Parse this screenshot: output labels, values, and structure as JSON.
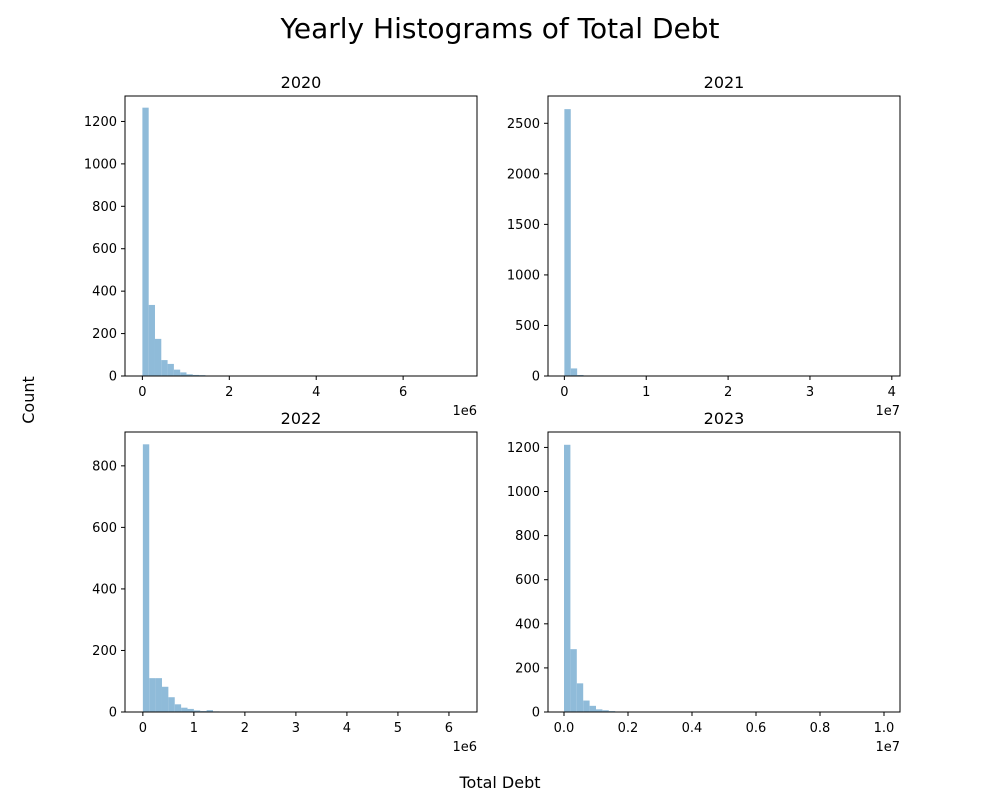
{
  "figure": {
    "title": "Yearly Histograms of Total Debt",
    "xlabel": "Total Debt",
    "ylabel": "Count"
  },
  "colors": {
    "bar": "#8fbbd9",
    "axis": "#000000",
    "background": "#ffffff"
  },
  "chart_data": [
    {
      "type": "bar",
      "title": "2020",
      "bin_width": 145000,
      "bin_start": 0,
      "values": [
        1265,
        335,
        175,
        75,
        57,
        30,
        17,
        8,
        5,
        4,
        2,
        1,
        1,
        0,
        0,
        0,
        0,
        0,
        0,
        0,
        0,
        0,
        0,
        0,
        0,
        0,
        0,
        0,
        0,
        0,
        0,
        0,
        0,
        0,
        0,
        0,
        0,
        0,
        0,
        0,
        0,
        0,
        0,
        0,
        0,
        0,
        0,
        0,
        0,
        1
      ],
      "xlim": [
        -400000,
        7700000
      ],
      "ylim": [
        0,
        1320
      ],
      "xticks": [
        0,
        2000000,
        4000000,
        6000000
      ],
      "xtick_labels": [
        "0",
        "2",
        "4",
        "6"
      ],
      "yticks": [
        0,
        200,
        400,
        600,
        800,
        1000,
        1200
      ],
      "ytick_labels": [
        "0",
        "200",
        "400",
        "600",
        "800",
        "1000",
        "1200"
      ],
      "offset_label": "1e6"
    },
    {
      "type": "bar",
      "title": "2021",
      "bin_width": 780000,
      "bin_start": 0,
      "values": [
        2640,
        75,
        10,
        3,
        1,
        0,
        0,
        0,
        0,
        0,
        0,
        0,
        0,
        0,
        0,
        0,
        0,
        0,
        0,
        0,
        0,
        0,
        0,
        0,
        0,
        0,
        0,
        0,
        0,
        0,
        0,
        0,
        0,
        0,
        0,
        0,
        0,
        0,
        0,
        0,
        0,
        0,
        0,
        0,
        0,
        0,
        0,
        0,
        0,
        1
      ],
      "xlim": [
        -2000000,
        41000000
      ],
      "ylim": [
        0,
        2770
      ],
      "xticks": [
        0,
        10000000,
        20000000,
        30000000,
        40000000
      ],
      "xtick_labels": [
        "0",
        "1",
        "2",
        "3",
        "4"
      ],
      "yticks": [
        0,
        500,
        1000,
        1500,
        2000,
        2500
      ],
      "ytick_labels": [
        "0",
        "500",
        "1000",
        "1500",
        "2000",
        "2500"
      ],
      "offset_label": "1e7"
    },
    {
      "type": "bar",
      "title": "2022",
      "bin_width": 125000,
      "bin_start": 0,
      "values": [
        870,
        110,
        110,
        82,
        48,
        25,
        14,
        10,
        5,
        3,
        6,
        2,
        1,
        1,
        0,
        0,
        0,
        0,
        0,
        0,
        0,
        0,
        0,
        0,
        0,
        0,
        0,
        0,
        0,
        0,
        0,
        0,
        0,
        0,
        0,
        0,
        0,
        0,
        0,
        0,
        0,
        0,
        0,
        0,
        0,
        0,
        0,
        0,
        0,
        1
      ],
      "xlim": [
        -350000,
        6550000
      ],
      "ylim": [
        0,
        910
      ],
      "xticks": [
        0,
        1000000,
        2000000,
        3000000,
        4000000,
        5000000,
        6000000
      ],
      "xtick_labels": [
        "0",
        "1",
        "2",
        "3",
        "4",
        "5",
        "6"
      ],
      "yticks": [
        0,
        200,
        400,
        600,
        800
      ],
      "ytick_labels": [
        "0",
        "200",
        "400",
        "600",
        "800"
      ],
      "offset_label": "1e6"
    },
    {
      "type": "bar",
      "title": "2023",
      "bin_width": 200000,
      "bin_start": 0,
      "values": [
        1212,
        285,
        130,
        52,
        28,
        12,
        8,
        4,
        2,
        1,
        1,
        0,
        0,
        0,
        0,
        0,
        0,
        0,
        0,
        0,
        0,
        0,
        0,
        0,
        0,
        0,
        0,
        0,
        0,
        0,
        0,
        0,
        0,
        0,
        0,
        0,
        0,
        0,
        0,
        0,
        0,
        0,
        0,
        0,
        0,
        0,
        0,
        0,
        0,
        1
      ],
      "xlim": [
        -500000,
        10500000
      ],
      "ylim": [
        0,
        1270
      ],
      "xticks": [
        0,
        2000000,
        4000000,
        6000000,
        8000000,
        10000000
      ],
      "xtick_labels": [
        "0.0",
        "0.2",
        "0.4",
        "0.6",
        "0.8",
        "1.0"
      ],
      "yticks": [
        0,
        200,
        400,
        600,
        800,
        1000,
        1200
      ],
      "ytick_labels": [
        "0",
        "200",
        "400",
        "600",
        "800",
        "1000",
        "1200"
      ],
      "offset_label": "1e7"
    }
  ]
}
